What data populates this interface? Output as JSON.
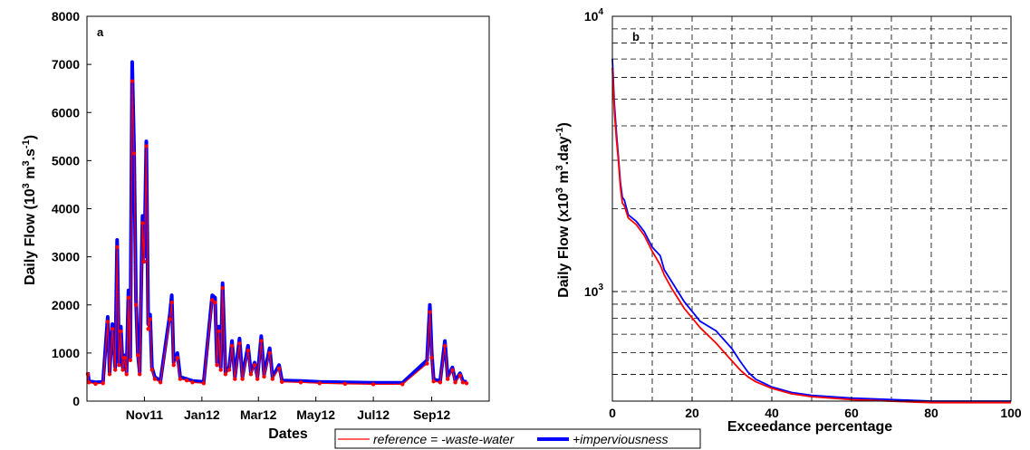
{
  "chart_data": [
    {
      "type": "line",
      "panel_label": "a",
      "xlabel": "Dates",
      "ylabel": "Daily Flow (10^3 m^3.s^-1)",
      "ylabel_parts": {
        "base": "Daily Flow (10",
        "e1": "3",
        "mid": " m",
        "e2": "3",
        "mid2": ".s",
        "e3": "-1",
        "end": ")"
      },
      "xlim": [
        "2011-09-01",
        "2012-11-01"
      ],
      "ylim": [
        0,
        8000
      ],
      "yticks": [
        0,
        1000,
        2000,
        3000,
        4000,
        5000,
        6000,
        7000,
        8000
      ],
      "xticks": [
        {
          "date": "2011-11-01",
          "label": "Nov11"
        },
        {
          "date": "2012-01-01",
          "label": "Jan12"
        },
        {
          "date": "2012-03-01",
          "label": "Mar12"
        },
        {
          "date": "2012-05-01",
          "label": "May12"
        },
        {
          "date": "2012-07-01",
          "label": "Jul12"
        },
        {
          "date": "2012-09-01",
          "label": "Sep12"
        }
      ],
      "series": [
        {
          "name": "+imperviousness",
          "color": "#0000ff",
          "points": [
            [
              "2011-09-02",
              600
            ],
            [
              "2011-09-03",
              420
            ],
            [
              "2011-09-10",
              390
            ],
            [
              "2011-09-18",
              400
            ],
            [
              "2011-09-23",
              1750
            ],
            [
              "2011-09-25",
              600
            ],
            [
              "2011-09-28",
              1600
            ],
            [
              "2011-10-01",
              700
            ],
            [
              "2011-10-03",
              3350
            ],
            [
              "2011-10-05",
              800
            ],
            [
              "2011-10-07",
              1550
            ],
            [
              "2011-10-09",
              700
            ],
            [
              "2011-10-11",
              950
            ],
            [
              "2011-10-13",
              600
            ],
            [
              "2011-10-15",
              2300
            ],
            [
              "2011-10-17",
              900
            ],
            [
              "2011-10-19",
              7050
            ],
            [
              "2011-10-21",
              5250
            ],
            [
              "2011-10-23",
              2100
            ],
            [
              "2011-10-25",
              1000
            ],
            [
              "2011-10-27",
              600
            ],
            [
              "2011-10-30",
              3850
            ],
            [
              "2011-11-01",
              3000
            ],
            [
              "2011-11-03",
              5400
            ],
            [
              "2011-11-05",
              1600
            ],
            [
              "2011-11-07",
              1800
            ],
            [
              "2011-11-09",
              700
            ],
            [
              "2011-11-12",
              500
            ],
            [
              "2011-11-18",
              420
            ],
            [
              "2011-11-28",
              1800
            ],
            [
              "2011-11-30",
              2200
            ],
            [
              "2011-12-02",
              800
            ],
            [
              "2011-12-06",
              1000
            ],
            [
              "2011-12-09",
              500
            ],
            [
              "2011-12-16",
              460
            ],
            [
              "2011-12-22",
              420
            ],
            [
              "2012-01-03",
              400
            ],
            [
              "2012-01-12",
              2200
            ],
            [
              "2012-01-15",
              2150
            ],
            [
              "2012-01-17",
              800
            ],
            [
              "2012-01-19",
              1550
            ],
            [
              "2012-01-21",
              700
            ],
            [
              "2012-01-23",
              2450
            ],
            [
              "2012-01-26",
              600
            ],
            [
              "2012-01-30",
              700
            ],
            [
              "2012-02-02",
              1250
            ],
            [
              "2012-02-05",
              500
            ],
            [
              "2012-02-10",
              1300
            ],
            [
              "2012-02-13",
              500
            ],
            [
              "2012-02-19",
              1150
            ],
            [
              "2012-02-22",
              600
            ],
            [
              "2012-02-26",
              800
            ],
            [
              "2012-02-29",
              500
            ],
            [
              "2012-03-04",
              1350
            ],
            [
              "2012-03-07",
              550
            ],
            [
              "2012-03-13",
              1100
            ],
            [
              "2012-03-16",
              500
            ],
            [
              "2012-03-23",
              750
            ],
            [
              "2012-03-26",
              430
            ],
            [
              "2012-04-15",
              420
            ],
            [
              "2012-05-05",
              400
            ],
            [
              "2012-06-01",
              390
            ],
            [
              "2012-07-01",
              380
            ],
            [
              "2012-08-01",
              380
            ],
            [
              "2012-08-27",
              850
            ],
            [
              "2012-08-30",
              2000
            ],
            [
              "2012-09-01",
              1000
            ],
            [
              "2012-09-03",
              450
            ],
            [
              "2012-09-10",
              420
            ],
            [
              "2012-09-15",
              1250
            ],
            [
              "2012-09-18",
              500
            ],
            [
              "2012-09-23",
              700
            ],
            [
              "2012-09-26",
              420
            ],
            [
              "2012-10-01",
              580
            ],
            [
              "2012-10-04",
              420
            ],
            [
              "2012-10-08",
              400
            ]
          ]
        },
        {
          "name": "reference = -waste-water",
          "color": "#ff0000",
          "points": [
            [
              "2011-09-02",
              560
            ],
            [
              "2011-09-03",
              390
            ],
            [
              "2011-09-10",
              360
            ],
            [
              "2011-09-18",
              370
            ],
            [
              "2011-09-23",
              1650
            ],
            [
              "2011-09-25",
              560
            ],
            [
              "2011-09-28",
              1500
            ],
            [
              "2011-10-01",
              650
            ],
            [
              "2011-10-03",
              3200
            ],
            [
              "2011-10-05",
              750
            ],
            [
              "2011-10-07",
              1450
            ],
            [
              "2011-10-09",
              650
            ],
            [
              "2011-10-11",
              900
            ],
            [
              "2011-10-13",
              560
            ],
            [
              "2011-10-15",
              2150
            ],
            [
              "2011-10-17",
              850
            ],
            [
              "2011-10-19",
              6650
            ],
            [
              "2011-10-21",
              5150
            ],
            [
              "2011-10-23",
              2000
            ],
            [
              "2011-10-25",
              950
            ],
            [
              "2011-10-27",
              560
            ],
            [
              "2011-10-30",
              3700
            ],
            [
              "2011-11-01",
              2900
            ],
            [
              "2011-11-03",
              5300
            ],
            [
              "2011-11-05",
              1500
            ],
            [
              "2011-11-07",
              1700
            ],
            [
              "2011-11-09",
              650
            ],
            [
              "2011-11-12",
              460
            ],
            [
              "2011-11-18",
              390
            ],
            [
              "2011-11-28",
              1700
            ],
            [
              "2011-11-30",
              2050
            ],
            [
              "2011-12-02",
              750
            ],
            [
              "2011-12-06",
              900
            ],
            [
              "2011-12-09",
              460
            ],
            [
              "2011-12-16",
              430
            ],
            [
              "2011-12-22",
              390
            ],
            [
              "2012-01-03",
              370
            ],
            [
              "2012-01-12",
              2100
            ],
            [
              "2012-01-15",
              2050
            ],
            [
              "2012-01-17",
              750
            ],
            [
              "2012-01-19",
              1450
            ],
            [
              "2012-01-21",
              650
            ],
            [
              "2012-01-23",
              2350
            ],
            [
              "2012-01-26",
              560
            ],
            [
              "2012-01-30",
              650
            ],
            [
              "2012-02-02",
              1150
            ],
            [
              "2012-02-05",
              460
            ],
            [
              "2012-02-10",
              1200
            ],
            [
              "2012-02-13",
              460
            ],
            [
              "2012-02-19",
              1050
            ],
            [
              "2012-02-22",
              560
            ],
            [
              "2012-02-26",
              750
            ],
            [
              "2012-02-29",
              460
            ],
            [
              "2012-03-04",
              1250
            ],
            [
              "2012-03-07",
              510
            ],
            [
              "2012-03-13",
              1000
            ],
            [
              "2012-03-16",
              460
            ],
            [
              "2012-03-23",
              680
            ],
            [
              "2012-03-26",
              400
            ],
            [
              "2012-04-15",
              390
            ],
            [
              "2012-05-05",
              370
            ],
            [
              "2012-06-01",
              360
            ],
            [
              "2012-07-01",
              350
            ],
            [
              "2012-08-01",
              350
            ],
            [
              "2012-08-27",
              780
            ],
            [
              "2012-08-30",
              1850
            ],
            [
              "2012-09-01",
              900
            ],
            [
              "2012-09-03",
              410
            ],
            [
              "2012-09-10",
              390
            ],
            [
              "2012-09-15",
              1150
            ],
            [
              "2012-09-18",
              460
            ],
            [
              "2012-09-23",
              640
            ],
            [
              "2012-09-26",
              390
            ],
            [
              "2012-10-01",
              530
            ],
            [
              "2012-10-04",
              390
            ],
            [
              "2012-10-08",
              370
            ]
          ]
        }
      ]
    },
    {
      "type": "line",
      "panel_label": "b",
      "xlabel": "Exceedance percentage",
      "ylabel_parts": {
        "base": "Daily Flow (x10",
        "e1": "3",
        "mid": " m",
        "e2": "3",
        "mid2": ".day",
        "e3": "-1",
        "end": ")"
      },
      "xlim": [
        0,
        100
      ],
      "ylim": [
        400,
        10000
      ],
      "yscale": "log",
      "grid": true,
      "xticks": [
        0,
        20,
        40,
        60,
        80,
        100
      ],
      "yticks_labeled": [
        {
          "value": 1000,
          "base": "10",
          "exp": "3"
        },
        {
          "value": 10000,
          "base": "10",
          "exp": "4"
        }
      ],
      "series": [
        {
          "name": "+imperviousness",
          "color": "#0000ff",
          "points": [
            [
              0,
              7000
            ],
            [
              0.5,
              4800
            ],
            [
              1,
              3800
            ],
            [
              1.5,
              3100
            ],
            [
              2,
              2500
            ],
            [
              2.5,
              2200
            ],
            [
              3,
              2150
            ],
            [
              4,
              1900
            ],
            [
              6,
              1800
            ],
            [
              8,
              1650
            ],
            [
              10,
              1450
            ],
            [
              12,
              1350
            ],
            [
              13,
              1200
            ],
            [
              15,
              1080
            ],
            [
              18,
              920
            ],
            [
              22,
              780
            ],
            [
              26,
              720
            ],
            [
              30,
              620
            ],
            [
              32,
              560
            ],
            [
              34,
              510
            ],
            [
              36,
              480
            ],
            [
              40,
              450
            ],
            [
              45,
              430
            ],
            [
              50,
              420
            ],
            [
              60,
              410
            ],
            [
              80,
              400
            ],
            [
              100,
              400
            ]
          ]
        },
        {
          "name": "reference = -waste-water",
          "color": "#ff0000",
          "points": [
            [
              0,
              6500
            ],
            [
              0.5,
              4500
            ],
            [
              1,
              3600
            ],
            [
              1.5,
              3000
            ],
            [
              2,
              2400
            ],
            [
              2.5,
              2100
            ],
            [
              3,
              2050
            ],
            [
              4,
              1850
            ],
            [
              6,
              1750
            ],
            [
              8,
              1600
            ],
            [
              10,
              1400
            ],
            [
              12,
              1250
            ],
            [
              13,
              1150
            ],
            [
              15,
              1020
            ],
            [
              18,
              870
            ],
            [
              22,
              740
            ],
            [
              26,
              650
            ],
            [
              30,
              560
            ],
            [
              32,
              520
            ],
            [
              34,
              490
            ],
            [
              36,
              470
            ],
            [
              40,
              445
            ],
            [
              45,
              425
            ],
            [
              50,
              415
            ],
            [
              60,
              405
            ],
            [
              80,
              395
            ],
            [
              100,
              395
            ]
          ]
        }
      ]
    }
  ],
  "legend": {
    "placement": "bottom-center",
    "entries": [
      {
        "label": "reference = -waste-water",
        "color": "#ff0000",
        "style": "thin"
      },
      {
        "label": "+imperviousness",
        "color": "#0000ff",
        "style": "thick"
      }
    ]
  }
}
